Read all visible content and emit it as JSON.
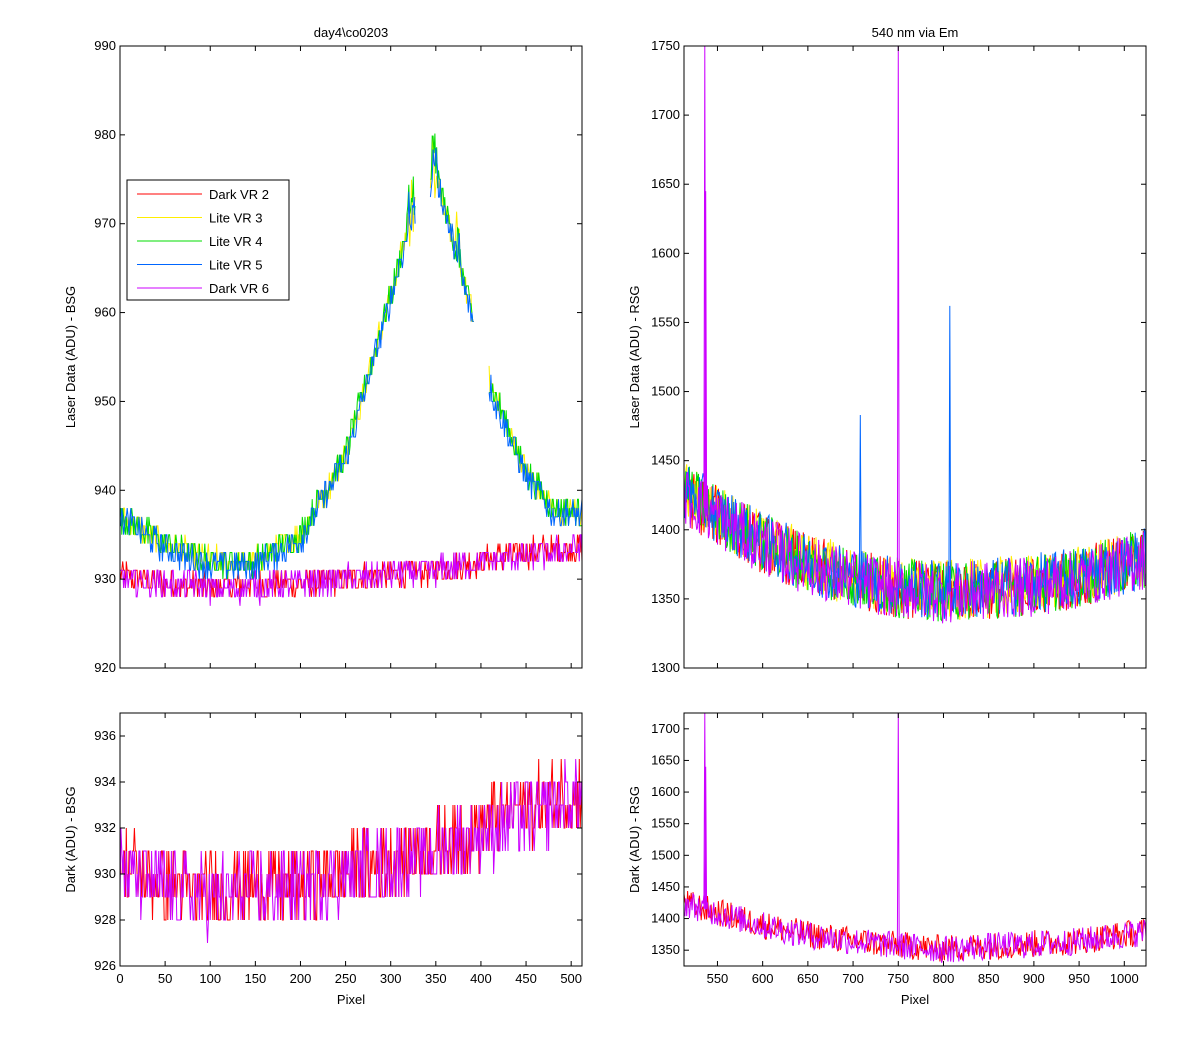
{
  "chart_data": [
    {
      "type": "line",
      "title": "day4\\co0203",
      "xlabel": "",
      "ylabel": "Laser Data (ADU) - BSG",
      "xlim": [
        0,
        512
      ],
      "ylim": [
        920,
        990
      ],
      "xticks": [
        0,
        50,
        100,
        150,
        200,
        250,
        300,
        350,
        400,
        450,
        500
      ],
      "xtick_labels_shown": false,
      "yticks": [
        920,
        930,
        940,
        950,
        960,
        970,
        980,
        990
      ],
      "grid": false,
      "legend": {
        "position": "upper-left"
      },
      "series": [
        {
          "name": "Dark VR 2",
          "color": "#ff0000",
          "x": [
            0,
            50,
            100,
            150,
            200,
            250,
            300,
            350,
            400,
            450,
            512
          ],
          "y": [
            930.5,
            929.5,
            929.0,
            929.5,
            929.5,
            930.0,
            930.5,
            931.0,
            932.0,
            933.0,
            933.5
          ]
        },
        {
          "name": "Lite VR 3",
          "color": "#ffee00",
          "x": [
            0,
            50,
            100,
            150,
            200,
            250,
            300,
            320,
            340,
            350,
            370,
            390,
            410,
            450,
            480,
            512
          ],
          "y": [
            937,
            934,
            932,
            932,
            935,
            944,
            962,
            970,
            975,
            976,
            968,
            960,
            952,
            942,
            938,
            937.5
          ]
        },
        {
          "name": "Lite VR 4",
          "color": "#00dd00",
          "x": [
            0,
            50,
            100,
            150,
            200,
            250,
            300,
            320,
            340,
            350,
            370,
            390,
            410,
            450,
            480,
            512
          ],
          "y": [
            937,
            934,
            932,
            932,
            935,
            944,
            962,
            970,
            975,
            976,
            968,
            960,
            952,
            942,
            938,
            937.5
          ]
        },
        {
          "name": "Lite VR 5",
          "color": "#0066ff",
          "x": [
            0,
            50,
            100,
            150,
            200,
            250,
            300,
            320,
            340,
            350,
            370,
            390,
            410,
            450,
            480,
            512
          ],
          "y": [
            937,
            933.5,
            931.5,
            931.5,
            934.5,
            943.5,
            961.5,
            969.5,
            974.5,
            975.5,
            967.5,
            959.5,
            951.5,
            941.5,
            937.5,
            937
          ]
        },
        {
          "name": "Dark VR 6",
          "color": "#cc00ff",
          "x": [
            0,
            50,
            100,
            150,
            200,
            250,
            300,
            350,
            400,
            450,
            512
          ],
          "y": [
            930.0,
            929.5,
            929.0,
            929.0,
            929.5,
            930.0,
            930.5,
            931.0,
            932.0,
            932.5,
            933.5
          ]
        }
      ]
    },
    {
      "type": "line",
      "title": "540 nm via Em",
      "xlabel": "",
      "ylabel": "Laser Data (ADU) - RSG",
      "xlim": [
        513,
        1024
      ],
      "ylim": [
        1300,
        1750
      ],
      "xticks": [
        550,
        600,
        650,
        700,
        750,
        800,
        850,
        900,
        950,
        1000
      ],
      "xtick_labels_shown": false,
      "yticks": [
        1300,
        1350,
        1400,
        1450,
        1500,
        1550,
        1600,
        1650,
        1700,
        1750
      ],
      "grid": false,
      "series": [
        {
          "name": "Dark VR 2",
          "color": "#ff0000",
          "x": [
            513,
            550,
            600,
            650,
            700,
            750,
            800,
            850,
            900,
            950,
            1000,
            1024
          ],
          "y": [
            1425,
            1410,
            1390,
            1375,
            1365,
            1358,
            1355,
            1357,
            1360,
            1365,
            1375,
            1380
          ]
        },
        {
          "name": "Lite VR 3",
          "color": "#ffee00",
          "x": [
            513,
            550,
            600,
            650,
            700,
            750,
            800,
            850,
            900,
            950,
            1000,
            1024
          ],
          "y": [
            1428,
            1412,
            1392,
            1377,
            1366,
            1359,
            1356,
            1358,
            1361,
            1366,
            1376,
            1381
          ]
        },
        {
          "name": "Lite VR 4",
          "color": "#00dd00",
          "x": [
            513,
            550,
            600,
            650,
            700,
            750,
            800,
            850,
            900,
            950,
            1000,
            1024
          ],
          "y": [
            1427,
            1411,
            1391,
            1376,
            1365,
            1358,
            1355,
            1357,
            1360,
            1365,
            1375,
            1380
          ]
        },
        {
          "name": "Lite VR 5",
          "color": "#0066ff",
          "x": [
            513,
            550,
            600,
            650,
            700,
            750,
            800,
            850,
            900,
            950,
            1000,
            1024
          ],
          "y": [
            1428,
            1412,
            1391,
            1376,
            1366,
            1359,
            1356,
            1358,
            1361,
            1366,
            1375,
            1381
          ]
        },
        {
          "name": "Dark VR 6",
          "color": "#cc00ff",
          "x": [
            513,
            550,
            600,
            650,
            700,
            750,
            800,
            850,
            900,
            950,
            1000,
            1024
          ],
          "y": [
            1424,
            1409,
            1389,
            1374,
            1364,
            1357,
            1354,
            1356,
            1359,
            1364,
            1374,
            1379
          ]
        }
      ],
      "spikes": [
        {
          "x": 536,
          "y": 1750,
          "color": "#cc00ff"
        },
        {
          "x": 537,
          "y": 1645,
          "color": "#cc00ff"
        },
        {
          "x": 708,
          "y": 1483,
          "color": "#0066ff"
        },
        {
          "x": 750,
          "y": 1750,
          "color": "#cc00ff"
        },
        {
          "x": 807,
          "y": 1562,
          "color": "#0066ff"
        }
      ]
    },
    {
      "type": "line",
      "title": "",
      "xlabel": "Pixel",
      "ylabel": "Dark (ADU) - BSG",
      "xlim": [
        0,
        512
      ],
      "ylim": [
        926,
        937
      ],
      "xticks": [
        0,
        50,
        100,
        150,
        200,
        250,
        300,
        350,
        400,
        450,
        500
      ],
      "yticks": [
        926,
        928,
        930,
        932,
        934,
        936
      ],
      "grid": false,
      "series": [
        {
          "name": "Dark VR 2",
          "color": "#ff0000",
          "x": [
            0,
            50,
            100,
            150,
            200,
            250,
            300,
            350,
            400,
            450,
            512
          ],
          "y": [
            930.5,
            929.5,
            929.2,
            929.5,
            929.6,
            930.0,
            930.6,
            931.2,
            932.0,
            933.0,
            933.5
          ]
        },
        {
          "name": "Dark VR 6",
          "color": "#cc00ff",
          "x": [
            0,
            50,
            100,
            150,
            200,
            250,
            300,
            350,
            400,
            450,
            512
          ],
          "y": [
            930.2,
            929.4,
            929.0,
            929.3,
            929.5,
            930.0,
            930.4,
            931.0,
            931.8,
            932.6,
            933.3
          ]
        }
      ]
    },
    {
      "type": "line",
      "title": "",
      "xlabel": "Pixel",
      "ylabel": "Dark (ADU) - RSG",
      "xlim": [
        513,
        1024
      ],
      "ylim": [
        1325,
        1725
      ],
      "xticks": [
        550,
        600,
        650,
        700,
        750,
        800,
        850,
        900,
        950,
        1000
      ],
      "yticks": [
        1350,
        1400,
        1450,
        1500,
        1550,
        1600,
        1650,
        1700
      ],
      "grid": false,
      "series": [
        {
          "name": "Dark VR 2",
          "color": "#ff0000",
          "x": [
            513,
            550,
            600,
            650,
            700,
            750,
            800,
            850,
            900,
            950,
            1000,
            1024
          ],
          "y": [
            1425,
            1410,
            1390,
            1375,
            1365,
            1358,
            1352,
            1357,
            1360,
            1365,
            1375,
            1380
          ]
        },
        {
          "name": "Dark VR 6",
          "color": "#cc00ff",
          "x": [
            513,
            550,
            600,
            650,
            700,
            750,
            800,
            850,
            900,
            950,
            1000,
            1024
          ],
          "y": [
            1424,
            1409,
            1389,
            1374,
            1364,
            1357,
            1351,
            1356,
            1359,
            1364,
            1374,
            1379
          ]
        }
      ],
      "spikes": [
        {
          "x": 536,
          "y": 1725,
          "color": "#cc00ff"
        },
        {
          "x": 537,
          "y": 1640,
          "color": "#cc00ff"
        },
        {
          "x": 750,
          "y": 1725,
          "color": "#cc00ff"
        }
      ]
    }
  ]
}
